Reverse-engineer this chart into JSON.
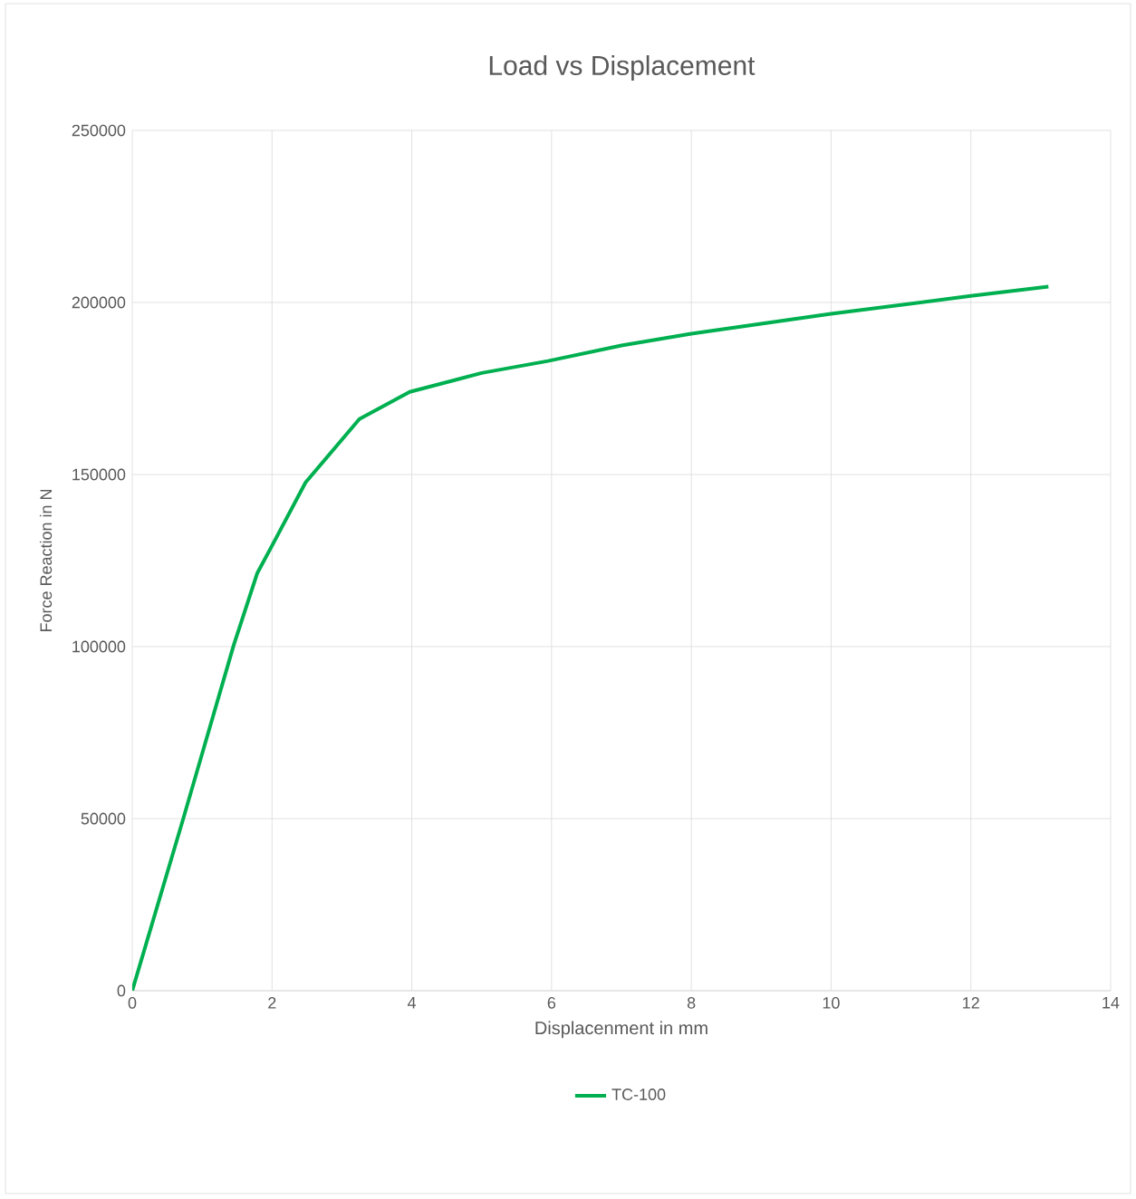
{
  "chart_data": {
    "type": "line",
    "title": "Load vs Displacement",
    "xlabel": "Displacenment in mm",
    "ylabel": "Force Reaction in N",
    "xlim": [
      0,
      14
    ],
    "xticks": [
      0,
      2,
      4,
      6,
      8,
      10,
      12,
      14
    ],
    "ylim": [
      0,
      250000
    ],
    "yticks": [
      0,
      50000,
      100000,
      150000,
      200000,
      250000
    ],
    "grid": true,
    "legend": "bottom",
    "marker": "none",
    "line_style": "solid",
    "series": [
      {
        "name": "TC-100",
        "color": "#00b050",
        "x": [
          0,
          0.73,
          1.45,
          1.79,
          2.0,
          2.48,
          3.25,
          3.97,
          5.0,
          5.95,
          7.0,
          8.0,
          10.0,
          12.0,
          13.11
        ],
        "values": [
          0,
          50000,
          100300,
          121400,
          129300,
          147700,
          166100,
          174000,
          179500,
          183000,
          187500,
          190900,
          196700,
          201900,
          204600
        ]
      }
    ]
  }
}
